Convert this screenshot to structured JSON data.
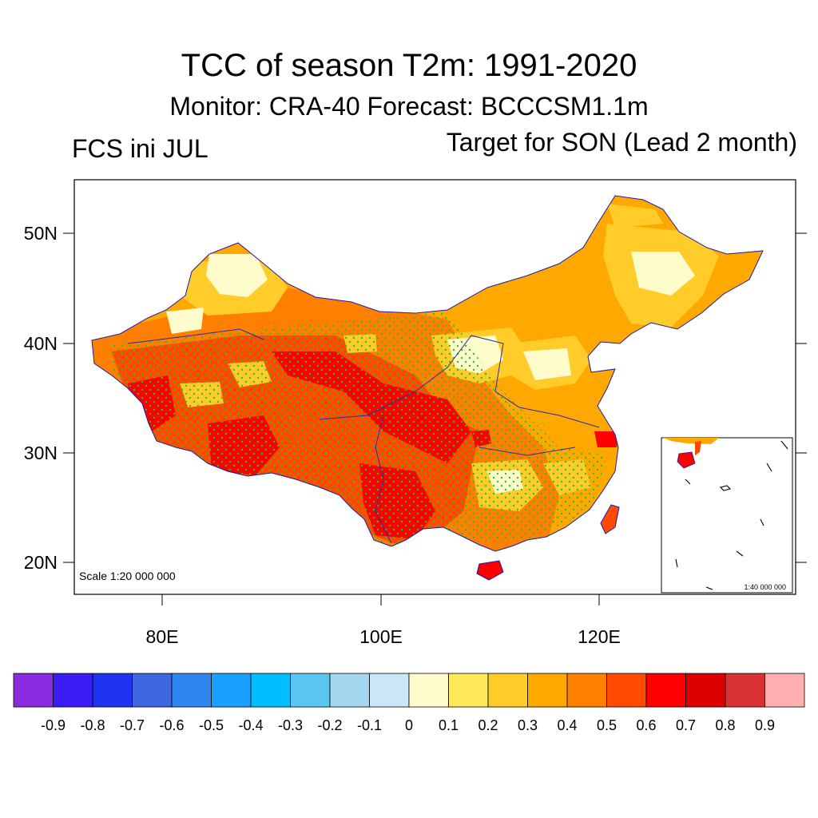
{
  "title": "TCC of season T2m: 1991-2020",
  "subtitle": "Monitor: CRA-40   Forecast: BCCCSM1.1m",
  "left_label": "FCS ini JUL",
  "right_label": "Target for SON (Lead 2 month)",
  "scale_main": "Scale 1:20 000 000",
  "scale_inset": "1:40 000 000",
  "lat_labels": [
    "20N",
    "30N",
    "40N",
    "50N"
  ],
  "lon_labels": [
    "80E",
    "100E",
    "120E"
  ],
  "colorbar": {
    "labels": [
      "-0.9",
      "-0.8",
      "-0.7",
      "-0.6",
      "-0.5",
      "-0.4",
      "-0.3",
      "-0.2",
      "-0.1",
      "0",
      "0.1",
      "0.2",
      "0.3",
      "0.4",
      "0.5",
      "0.6",
      "0.7",
      "0.8",
      "0.9"
    ],
    "colors": [
      "#8a2be2",
      "#3a1cf5",
      "#1f34f0",
      "#3e68e0",
      "#2f85f0",
      "#1aa0ff",
      "#00bfff",
      "#5cc6f2",
      "#a3d7f0",
      "#cbe7f5",
      "#fffccc",
      "#ffe95a",
      "#ffcc29",
      "#ffa800",
      "#ff8000",
      "#ff4a00",
      "#ff0000",
      "#dc0000",
      "#d83232",
      "#ffb0b0"
    ]
  }
}
